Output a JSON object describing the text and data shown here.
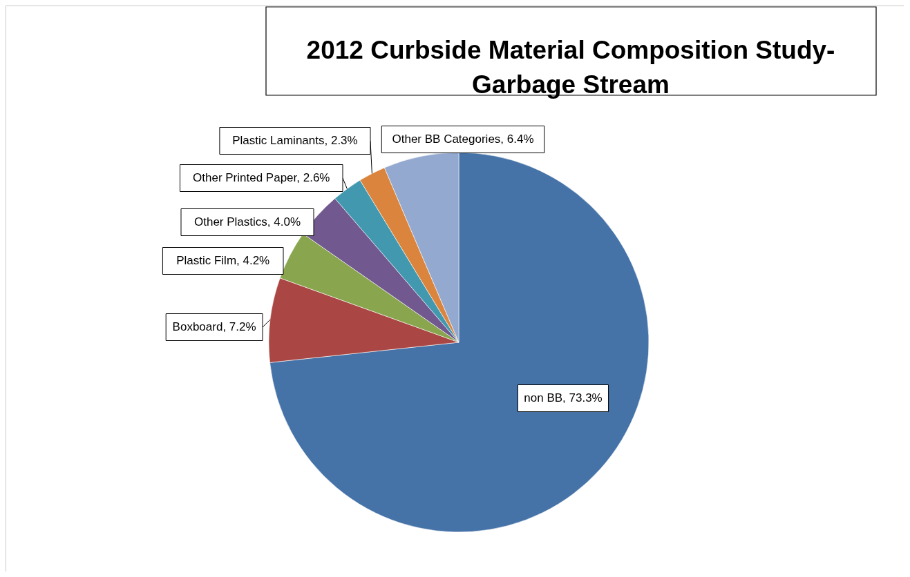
{
  "chart_data": {
    "type": "pie",
    "title": "2012 Curbside Material Composition Study-Garbage Stream",
    "categories": [
      "non BB",
      "Boxboard",
      "Plastic Film",
      "Other Plastics",
      "Other Printed Paper",
      "Plastic Laminants",
      "Other BB Categories"
    ],
    "values": [
      73.3,
      7.2,
      4.2,
      4.0,
      2.6,
      2.3,
      6.4
    ],
    "value_labels": [
      "73.3%",
      "7.2%",
      "4.2%",
      "4.0%",
      "2.6%",
      "2.3%",
      "6.4%"
    ],
    "colors": [
      "#4572a7",
      "#aa4643",
      "#89a54e",
      "#71588f",
      "#4198af",
      "#db843d",
      "#93a9cf"
    ]
  }
}
